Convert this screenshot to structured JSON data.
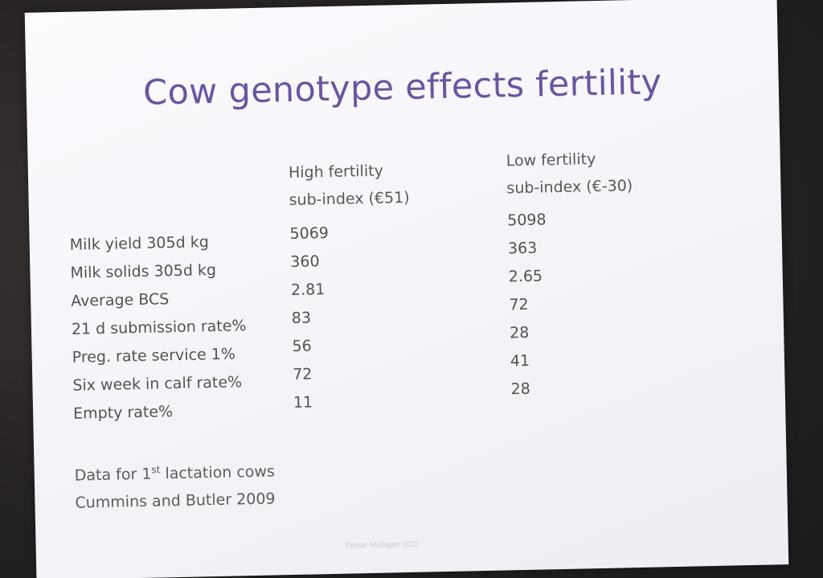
{
  "slide": {
    "title": "Cow genotype effects fertility",
    "columns": {
      "high": {
        "line1": "High fertility",
        "line2": "sub-index (€51)"
      },
      "low": {
        "line1": "Low fertility",
        "line2": "sub-index (€-30)"
      }
    },
    "rows": [
      {
        "label": "Milk yield 305d kg",
        "high": "5069",
        "low": "5098"
      },
      {
        "label": "Milk solids 305d kg",
        "high": "360",
        "low": "363"
      },
      {
        "label": "Average BCS",
        "high": "2.81",
        "low": "2.65"
      },
      {
        "label": "21 d submission rate%",
        "high": "83",
        "low": "72"
      },
      {
        "label": "Preg. rate service 1%",
        "high": "56",
        "low": "28"
      },
      {
        "label": "Six week in calf rate%",
        "high": "72",
        "low": "41"
      },
      {
        "label": "Empty rate%",
        "high": "11",
        "low": "28"
      }
    ],
    "footnote": {
      "data_prefix": "Data for 1",
      "data_sup": "st",
      "data_suffix": " lactation cows",
      "citation": "Cummins and Butler 2009"
    },
    "watermark": "Finbar Mulligan UCD"
  }
}
